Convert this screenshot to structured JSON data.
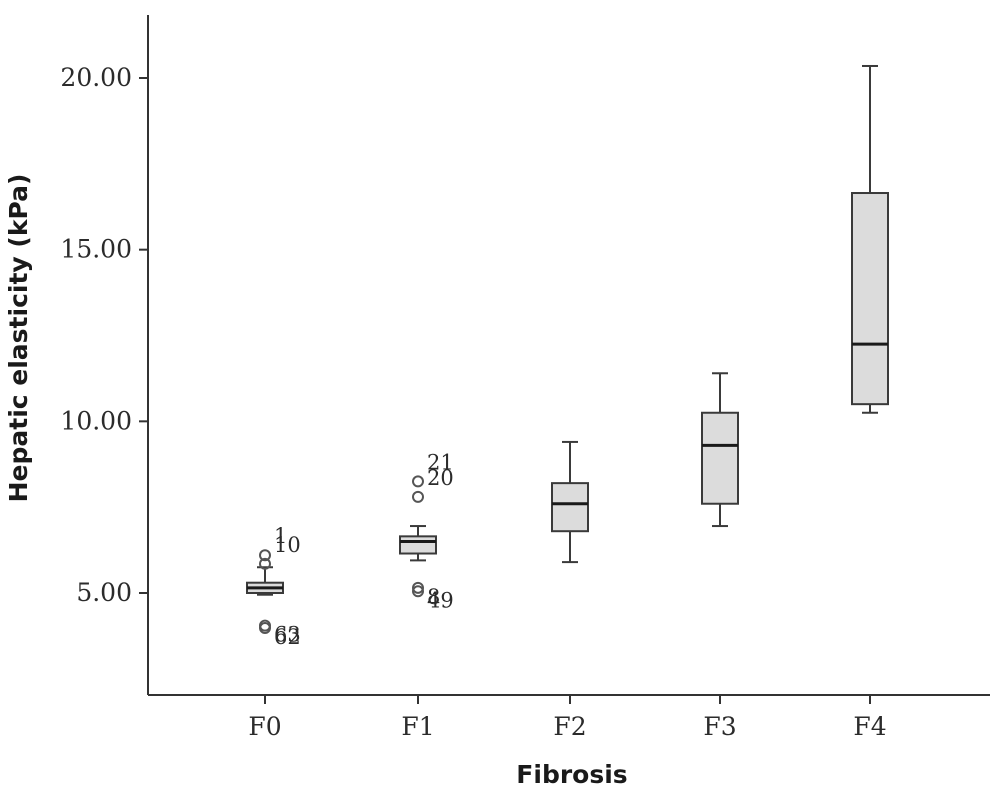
{
  "chart_data": {
    "type": "box",
    "title": "",
    "xlabel": "Fibrosis",
    "ylabel": "Hepatic elasticity (kPa)",
    "ylim": [
      2.0,
      22.0
    ],
    "yticks": [
      5,
      10,
      15,
      20
    ],
    "ytick_labels": [
      "5.00",
      "10.00",
      "15.00",
      "20.00"
    ],
    "categories": [
      "F0",
      "F1",
      "F2",
      "F3",
      "F4"
    ],
    "boxes": [
      {
        "category": "F0",
        "whisker_low": 4.95,
        "q1": 5.0,
        "median": 5.15,
        "q3": 5.3,
        "whisker_high": 5.75,
        "outliers": [
          {
            "value": 6.1,
            "label": "1"
          },
          {
            "value": 5.85,
            "label": "10"
          },
          {
            "value": 4.05,
            "label": "63"
          },
          {
            "value": 3.98,
            "label": "62"
          }
        ]
      },
      {
        "category": "F1",
        "whisker_low": 5.95,
        "q1": 6.15,
        "median": 6.5,
        "q3": 6.65,
        "whisker_high": 6.95,
        "outliers": [
          {
            "value": 8.25,
            "label": "21"
          },
          {
            "value": 7.8,
            "label": "20"
          },
          {
            "value": 5.15,
            "label": "8"
          },
          {
            "value": 5.05,
            "label": "49"
          }
        ]
      },
      {
        "category": "F2",
        "whisker_low": 5.9,
        "q1": 6.8,
        "median": 7.6,
        "q3": 8.2,
        "whisker_high": 9.4,
        "outliers": []
      },
      {
        "category": "F3",
        "whisker_low": 6.95,
        "q1": 7.6,
        "median": 9.3,
        "q3": 10.25,
        "whisker_high": 11.4,
        "outliers": []
      },
      {
        "category": "F4",
        "whisker_low": 10.25,
        "q1": 10.5,
        "median": 12.25,
        "q3": 16.65,
        "whisker_high": 20.35,
        "outliers": []
      }
    ],
    "grid": false,
    "legend": "none",
    "colors": {
      "box_fill": "#dcdcdc",
      "box_stroke": "#3a3a3a",
      "median": "#1a1a1a",
      "axis": "#333333",
      "outlier": "#555555"
    }
  }
}
